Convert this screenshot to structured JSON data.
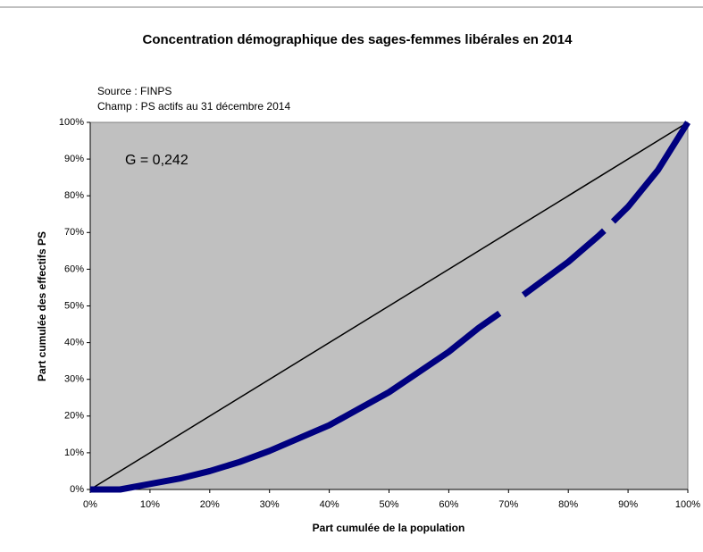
{
  "chart_data": {
    "type": "line",
    "title": "Concentration démographique des sages-femmes libérales en 2014",
    "source": "Source : FINPS",
    "scope": "Champ : PS actifs au 31 décembre 2014",
    "annotation": "G = 0,242",
    "xlabel": "Part cumulée de la population",
    "ylabel": "Part cumulée des effectifs PS",
    "xlim": [
      0,
      100
    ],
    "ylim": [
      0,
      100
    ],
    "xticks": [
      {
        "value": 0,
        "label": "0%"
      },
      {
        "value": 10,
        "label": "10%"
      },
      {
        "value": 20,
        "label": "20%"
      },
      {
        "value": 30,
        "label": "30%"
      },
      {
        "value": 40,
        "label": "40%"
      },
      {
        "value": 50,
        "label": "50%"
      },
      {
        "value": 60,
        "label": "60%"
      },
      {
        "value": 70,
        "label": "70%"
      },
      {
        "value": 80,
        "label": "80%"
      },
      {
        "value": 90,
        "label": "90%"
      },
      {
        "value": 100,
        "label": "100%"
      }
    ],
    "yticks": [
      {
        "value": 0,
        "label": "0%"
      },
      {
        "value": 10,
        "label": "10%"
      },
      {
        "value": 20,
        "label": "20%"
      },
      {
        "value": 30,
        "label": "30%"
      },
      {
        "value": 40,
        "label": "40%"
      },
      {
        "value": 50,
        "label": "50%"
      },
      {
        "value": 60,
        "label": "60%"
      },
      {
        "value": 70,
        "label": "70%"
      },
      {
        "value": 80,
        "label": "80%"
      },
      {
        "value": 90,
        "label": "90%"
      },
      {
        "value": 100,
        "label": "100%"
      }
    ],
    "background": "#c0c0c0",
    "series": [
      {
        "color": "#000000",
        "width": 1.5,
        "x": [
          0,
          100
        ],
        "values": [
          0,
          100
        ]
      },
      {
        "color": "#00007f",
        "width": 7,
        "x": [
          0,
          5,
          10,
          15,
          20,
          25,
          30,
          35,
          40,
          45,
          50,
          55,
          60,
          65,
          68.5,
          70,
          72.5,
          75,
          80,
          85,
          86,
          87,
          87.5,
          90,
          95,
          100
        ],
        "values": [
          0,
          0,
          1.5,
          3,
          5,
          7.5,
          10.5,
          14,
          17.5,
          22,
          26.5,
          32,
          37.5,
          44,
          48,
          null,
          53,
          56,
          62,
          69,
          70.5,
          null,
          73,
          77,
          87,
          100
        ]
      }
    ]
  }
}
